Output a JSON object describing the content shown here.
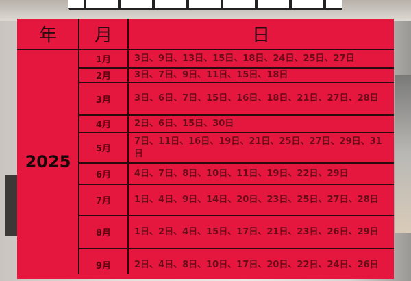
{
  "header": {
    "year": "年",
    "month": "月",
    "day": "日"
  },
  "year": "2025",
  "rows": [
    {
      "month": "1月",
      "days": "3日、9日、13日、15日、18日、24日、25日、27日"
    },
    {
      "month": "2月",
      "days": "3日、7日、9日、11日、15日、18日"
    },
    {
      "month": "3月",
      "days": "3日、6日、7日、15日、16日、18日、21日、27日、28日"
    },
    {
      "month": "4月",
      "days": "2日、6日、15日、30日"
    },
    {
      "month": "5月",
      "days": "7日、11日、16日、19日、21日、25日、27日、29日、31日"
    },
    {
      "month": "6月",
      "days": "4日、7日、8日、10日、11日、19日、22日、29日"
    },
    {
      "month": "7月",
      "days": "1日、4日、9日、14日、20日、23日、25日、27日、28日"
    },
    {
      "month": "8月",
      "days": "1日、2日、4日、15日、17日、21日、23日、26日、29日"
    },
    {
      "month": "9月",
      "days": "2日、4日、8日、10日、17日、20日、22日、24日、26日"
    }
  ],
  "colors": {
    "table_bg": "#e5173f",
    "text": "#6a0c18",
    "lines": "#2a0a0e"
  }
}
